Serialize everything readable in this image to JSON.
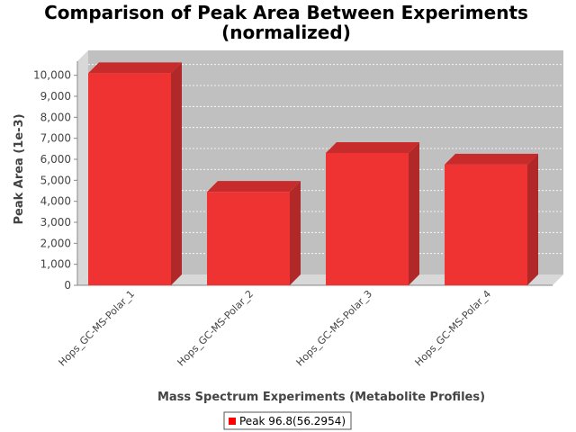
{
  "chart_data": {
    "type": "bar",
    "title_line1": "Comparison of Peak Area Between Experiments",
    "title_line2": "(normalized)",
    "xlabel": "Mass Spectrum Experiments (Metabolite Profiles)",
    "ylabel": "Peak Area (1e-3)",
    "categories": [
      "Hops_GC-MS-Polar_1",
      "Hops_GC-MS-Polar_2",
      "Hops_GC-MS-Polar_3",
      "Hops_GC-MS-Polar_4"
    ],
    "series": [
      {
        "name": "Peak 96.8(56.2954)",
        "values": [
          10100,
          4450,
          6300,
          5750
        ]
      }
    ],
    "ylim": [
      0,
      10500
    ],
    "yticks": [
      0,
      1000,
      2000,
      3000,
      4000,
      5000,
      6000,
      7000,
      8000,
      9000,
      10000
    ],
    "ytick_labels": [
      "0",
      "1,000",
      "2,000",
      "3,000",
      "4,000",
      "5,000",
      "6,000",
      "7,000",
      "8,000",
      "9,000",
      "10,000"
    ],
    "grid": true,
    "legend_position": "bottom",
    "colors": {
      "bar_front": "#ef3333",
      "bar_side": "#b02828",
      "bar_top": "#c72b2b",
      "plot_bg": "#c0c0c0",
      "plot_wall": "#d8d8d8",
      "legend_swatch": "#ff0000"
    }
  }
}
